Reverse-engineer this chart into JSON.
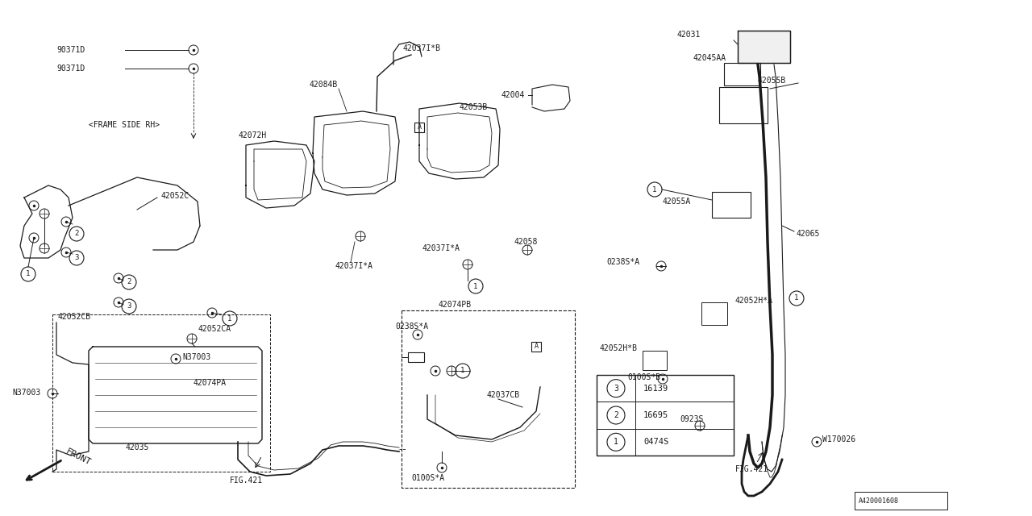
{
  "bg_color": "#ffffff",
  "line_color": "#1a1a1a",
  "fig_width": 12.8,
  "fig_height": 6.4,
  "dpi": 100,
  "legend_items": [
    {
      "num": "1",
      "code": "0474S"
    },
    {
      "num": "2",
      "code": "16695"
    },
    {
      "num": "3",
      "code": "16139"
    }
  ]
}
